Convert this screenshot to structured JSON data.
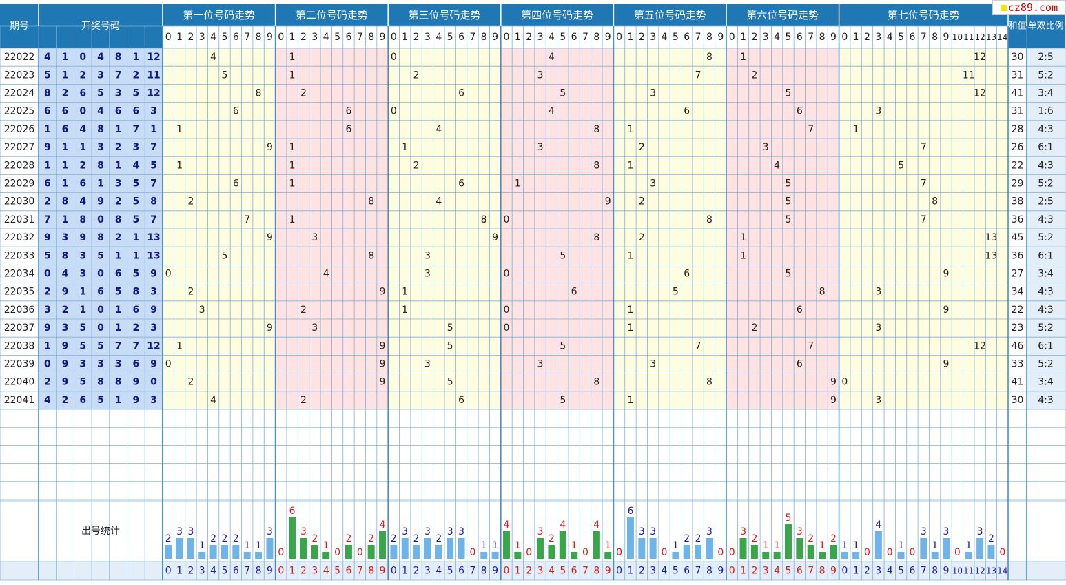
{
  "header": {
    "period": "期号",
    "draw": "开奖号码",
    "sum": "和值",
    "ratio": "单双比例",
    "stats": "出号统计"
  },
  "logo": "cz89.com",
  "colors": {
    "header_bg": "#1f78b4",
    "header_text": "#ffffff",
    "number_col_bg": "#c8dcf6",
    "number_text": "#0d1a80",
    "yellow_band": "#fffde0",
    "pink_band": "#ffe3e3",
    "grid_line": "#7fb0d8",
    "bar_blue": "#6eb3ea",
    "bar_green": "#3aa64a",
    "count_red": "#e41919",
    "count_blue": "#1a1ab4"
  },
  "chart_data": {
    "type": "table",
    "positions": [
      {
        "title": "第一位号码走势",
        "max": 9
      },
      {
        "title": "第二位号码走势",
        "max": 9
      },
      {
        "title": "第三位号码走势",
        "max": 9
      },
      {
        "title": "第四位号码走势",
        "max": 9
      },
      {
        "title": "第五位号码走势",
        "max": 9
      },
      {
        "title": "第六位号码走势",
        "max": 9
      },
      {
        "title": "第七位号码走势",
        "max": 14
      }
    ],
    "rows": [
      {
        "period": "22022",
        "nums": [
          4,
          1,
          0,
          4,
          8,
          1,
          12
        ],
        "sum": 30,
        "ratio": "2:5"
      },
      {
        "period": "22023",
        "nums": [
          5,
          1,
          2,
          3,
          7,
          2,
          11
        ],
        "sum": 31,
        "ratio": "5:2"
      },
      {
        "period": "22024",
        "nums": [
          8,
          2,
          6,
          5,
          3,
          5,
          12
        ],
        "sum": 41,
        "ratio": "3:4"
      },
      {
        "period": "22025",
        "nums": [
          6,
          6,
          0,
          4,
          6,
          6,
          3
        ],
        "sum": 31,
        "ratio": "1:6"
      },
      {
        "period": "22026",
        "nums": [
          1,
          6,
          4,
          8,
          1,
          7,
          1
        ],
        "sum": 28,
        "ratio": "4:3"
      },
      {
        "period": "22027",
        "nums": [
          9,
          1,
          1,
          3,
          2,
          3,
          7
        ],
        "sum": 26,
        "ratio": "6:1"
      },
      {
        "period": "22028",
        "nums": [
          1,
          1,
          2,
          8,
          1,
          4,
          5
        ],
        "sum": 22,
        "ratio": "4:3"
      },
      {
        "period": "22029",
        "nums": [
          6,
          1,
          6,
          1,
          3,
          5,
          7
        ],
        "sum": 29,
        "ratio": "5:2"
      },
      {
        "period": "22030",
        "nums": [
          2,
          8,
          4,
          9,
          2,
          5,
          8
        ],
        "sum": 38,
        "ratio": "2:5"
      },
      {
        "period": "22031",
        "nums": [
          7,
          1,
          8,
          0,
          8,
          5,
          7
        ],
        "sum": 36,
        "ratio": "4:3"
      },
      {
        "period": "22032",
        "nums": [
          9,
          3,
          9,
          8,
          2,
          1,
          13
        ],
        "sum": 45,
        "ratio": "5:2"
      },
      {
        "period": "22033",
        "nums": [
          5,
          8,
          3,
          5,
          1,
          1,
          13
        ],
        "sum": 36,
        "ratio": "6:1"
      },
      {
        "period": "22034",
        "nums": [
          0,
          4,
          3,
          0,
          6,
          5,
          9
        ],
        "sum": 27,
        "ratio": "3:4"
      },
      {
        "period": "22035",
        "nums": [
          2,
          9,
          1,
          6,
          5,
          8,
          3
        ],
        "sum": 34,
        "ratio": "4:3"
      },
      {
        "period": "22036",
        "nums": [
          3,
          2,
          1,
          0,
          1,
          6,
          9
        ],
        "sum": 22,
        "ratio": "4:3"
      },
      {
        "period": "22037",
        "nums": [
          9,
          3,
          5,
          0,
          1,
          2,
          3
        ],
        "sum": 23,
        "ratio": "5:2"
      },
      {
        "period": "22038",
        "nums": [
          1,
          9,
          5,
          5,
          7,
          7,
          12
        ],
        "sum": 46,
        "ratio": "6:1"
      },
      {
        "period": "22039",
        "nums": [
          0,
          9,
          3,
          3,
          3,
          6,
          9
        ],
        "sum": 33,
        "ratio": "5:2"
      },
      {
        "period": "22040",
        "nums": [
          2,
          9,
          5,
          8,
          8,
          9,
          0
        ],
        "sum": 41,
        "ratio": "3:4"
      },
      {
        "period": "22041",
        "nums": [
          4,
          2,
          6,
          5,
          1,
          9,
          3
        ],
        "sum": 30,
        "ratio": "4:3"
      }
    ],
    "stats": [
      [
        2,
        3,
        3,
        1,
        2,
        2,
        2,
        1,
        1,
        3
      ],
      [
        0,
        6,
        3,
        2,
        1,
        0,
        2,
        0,
        2,
        4
      ],
      [
        2,
        3,
        2,
        3,
        2,
        3,
        3,
        0,
        1,
        1
      ],
      [
        4,
        1,
        0,
        3,
        2,
        4,
        1,
        0,
        4,
        1
      ],
      [
        0,
        6,
        3,
        3,
        0,
        1,
        2,
        2,
        3,
        0
      ],
      [
        0,
        3,
        2,
        1,
        1,
        5,
        3,
        2,
        1,
        2
      ],
      [
        1,
        1,
        0,
        4,
        0,
        1,
        0,
        3,
        1,
        3,
        0,
        1,
        3,
        2,
        0
      ]
    ]
  }
}
